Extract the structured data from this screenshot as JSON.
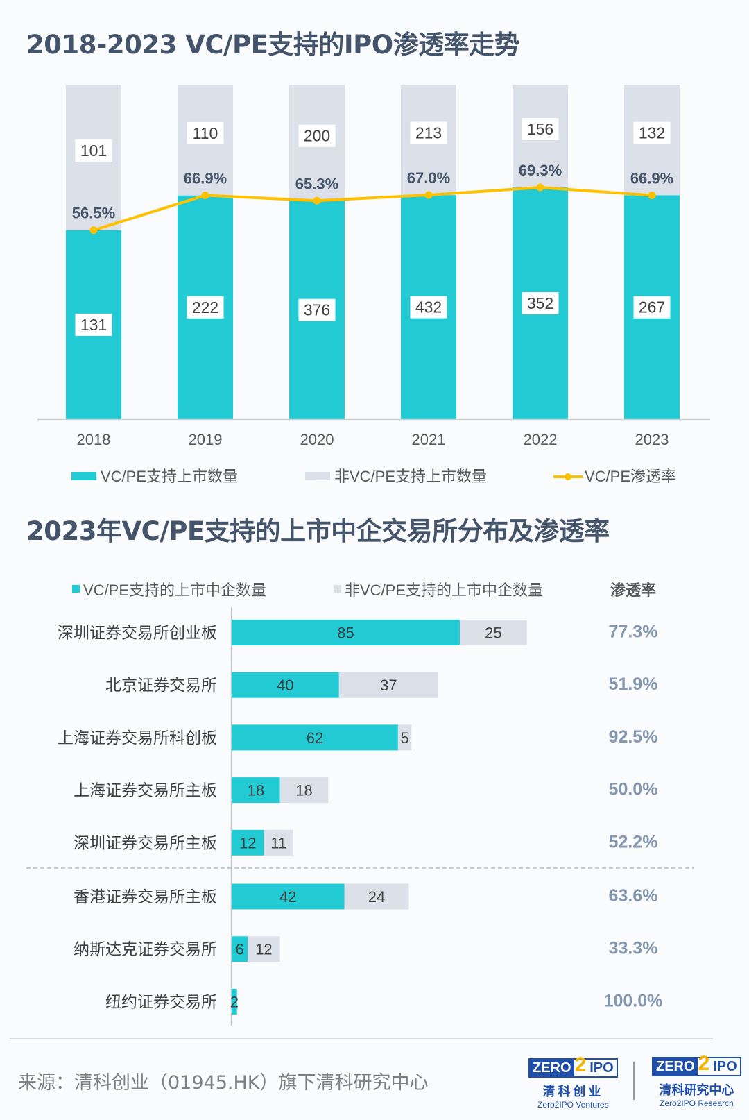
{
  "colors": {
    "vcpe": "#22cbd4",
    "non_vcpe": "#dce0e8",
    "rate": "#ffc000",
    "title": "#44546a",
    "rate_text": "#8497b0"
  },
  "chart_data": [
    {
      "type": "bar",
      "stacked": "100%",
      "title": "2018-2023 VC/PE支持的IPO渗透率走势",
      "categories": [
        "2018",
        "2019",
        "2020",
        "2021",
        "2022",
        "2023"
      ],
      "series": [
        {
          "name": "VC/PE支持上市数量",
          "values": [
            131,
            222,
            376,
            432,
            352,
            267
          ]
        },
        {
          "name": "非VC/PE支持上市数量",
          "values": [
            101,
            110,
            200,
            213,
            156,
            132
          ]
        },
        {
          "name": "VC/PE渗透率",
          "type": "line",
          "values": [
            56.5,
            66.9,
            65.3,
            67.0,
            69.3,
            66.9
          ],
          "labels": [
            "56.5%",
            "66.9%",
            "65.3%",
            "67.0%",
            "69.3%",
            "66.9%"
          ]
        }
      ],
      "legend": "bottom",
      "grid": false
    },
    {
      "type": "bar",
      "orientation": "horizontal",
      "stacked": true,
      "title": "2023年VC/PE支持的上市中企交易所分布及渗透率",
      "categories": [
        "深圳证券交易所创业板",
        "北京证券交易所",
        "上海证券交易所科创板",
        "上海证券交易所主板",
        "深圳证券交易所主板",
        "香港证券交易所主板",
        "纳斯达克证券交易所",
        "纽约证券交易所"
      ],
      "series": [
        {
          "name": "VC/PE支持的上市中企数量",
          "values": [
            85,
            40,
            62,
            18,
            12,
            42,
            6,
            2
          ]
        },
        {
          "name": "非VC/PE支持的上市中企数量",
          "values": [
            25,
            37,
            5,
            18,
            11,
            24,
            12,
            0
          ]
        }
      ],
      "rate_header": "渗透率",
      "rates": [
        "77.3%",
        "51.9%",
        "92.5%",
        "50.0%",
        "52.2%",
        "63.6%",
        "33.3%",
        "100.0%"
      ],
      "legend": "top"
    }
  ],
  "footer": {
    "source": "来源：清科创业（01945.HK）旗下清科研究中心",
    "logo1": {
      "mark_left": "ZERO",
      "mark_mid": "2",
      "mark_right": "IPO",
      "cn": "清科创业",
      "en": "Zero2IPO Ventures"
    },
    "logo2": {
      "mark_left": "ZERO",
      "mark_mid": "2",
      "mark_right": "IPO",
      "cn": "清科研究中心",
      "en": "Zero2IPO Research"
    }
  }
}
